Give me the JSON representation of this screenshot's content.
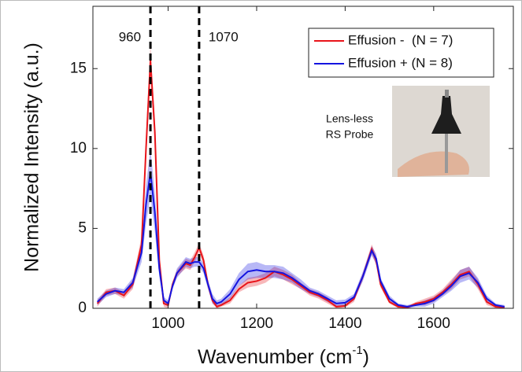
{
  "chart_data": {
    "type": "line",
    "xlabel_parts": [
      "Wavenumber (cm",
      "-1",
      ")"
    ],
    "ylabel": "Normalized Intensity (a.u.)",
    "xlim": [
      830,
      1780
    ],
    "ylim": [
      0,
      18.9
    ],
    "xticks": [
      1000,
      1200,
      1400,
      1600
    ],
    "yticks": [
      0,
      5,
      10,
      15
    ],
    "vlines": [
      960,
      1070
    ],
    "inset_label": [
      "Lens-less",
      "RS Probe"
    ],
    "x": [
      840,
      860,
      880,
      900,
      920,
      940,
      950,
      960,
      970,
      980,
      990,
      1000,
      1010,
      1020,
      1040,
      1050,
      1060,
      1070,
      1080,
      1090,
      1100,
      1110,
      1120,
      1140,
      1160,
      1180,
      1200,
      1220,
      1240,
      1260,
      1280,
      1300,
      1320,
      1340,
      1360,
      1380,
      1400,
      1420,
      1440,
      1460,
      1470,
      1480,
      1500,
      1520,
      1540,
      1560,
      1580,
      1600,
      1620,
      1640,
      1660,
      1680,
      1700,
      1720,
      1740,
      1760
    ],
    "series": [
      {
        "name": "Effusion -  (N = 7)",
        "color": "#e8141a",
        "values": [
          0.3,
          1.0,
          1.1,
          0.8,
          1.5,
          4,
          10,
          15.5,
          11,
          3,
          0.3,
          0.2,
          1.5,
          2.2,
          2.8,
          2.7,
          3.2,
          3.8,
          3.0,
          1.5,
          0.5,
          0.1,
          0.2,
          0.5,
          1.2,
          1.6,
          1.7,
          1.9,
          2.3,
          2.1,
          1.8,
          1.4,
          1.0,
          0.8,
          0.5,
          0.1,
          0.15,
          0.6,
          2.0,
          3.7,
          3.0,
          1.5,
          0.4,
          0.1,
          0.05,
          0.3,
          0.4,
          0.6,
          1.0,
          1.5,
          2.1,
          2.3,
          1.5,
          0.4,
          0.1,
          0.05
        ],
        "error": [
          0.2,
          0.2,
          0.2,
          0.2,
          0.3,
          0.5,
          0.8,
          1.0,
          0.8,
          0.4,
          0.2,
          0.2,
          0.2,
          0.2,
          0.3,
          0.3,
          0.3,
          0.3,
          0.3,
          0.2,
          0.2,
          0.1,
          0.1,
          0.2,
          0.2,
          0.3,
          0.3,
          0.3,
          0.3,
          0.3,
          0.3,
          0.2,
          0.2,
          0.2,
          0.2,
          0.1,
          0.1,
          0.2,
          0.2,
          0.3,
          0.3,
          0.2,
          0.1,
          0.1,
          0.1,
          0.1,
          0.2,
          0.2,
          0.2,
          0.3,
          0.3,
          0.3,
          0.3,
          0.2,
          0.1,
          0.1
        ]
      },
      {
        "name": "Effusion + (N = 8)",
        "color": "#1414e0",
        "values": [
          0.4,
          0.9,
          1.1,
          1.0,
          1.6,
          3.5,
          6.5,
          8.5,
          6,
          2.5,
          0.5,
          0.3,
          1.4,
          2.2,
          2.9,
          2.8,
          2.9,
          2.9,
          2.5,
          1.5,
          0.6,
          0.3,
          0.4,
          0.9,
          1.8,
          2.3,
          2.4,
          2.3,
          2.3,
          2.2,
          1.9,
          1.5,
          1.1,
          0.9,
          0.6,
          0.3,
          0.35,
          0.7,
          2.0,
          3.6,
          3.1,
          1.7,
          0.6,
          0.2,
          0.1,
          0.2,
          0.3,
          0.5,
          0.9,
          1.4,
          2.0,
          2.2,
          1.6,
          0.6,
          0.2,
          0.1
        ],
        "error": [
          0.2,
          0.2,
          0.2,
          0.2,
          0.3,
          0.6,
          1.2,
          1.5,
          1.2,
          0.5,
          0.2,
          0.2,
          0.2,
          0.3,
          0.3,
          0.3,
          0.3,
          0.3,
          0.3,
          0.3,
          0.3,
          0.2,
          0.2,
          0.3,
          0.4,
          0.5,
          0.5,
          0.4,
          0.4,
          0.4,
          0.3,
          0.3,
          0.2,
          0.2,
          0.2,
          0.2,
          0.2,
          0.2,
          0.3,
          0.3,
          0.3,
          0.2,
          0.2,
          0.1,
          0.1,
          0.1,
          0.2,
          0.2,
          0.2,
          0.3,
          0.4,
          0.4,
          0.3,
          0.2,
          0.1,
          0.1
        ]
      }
    ]
  }
}
